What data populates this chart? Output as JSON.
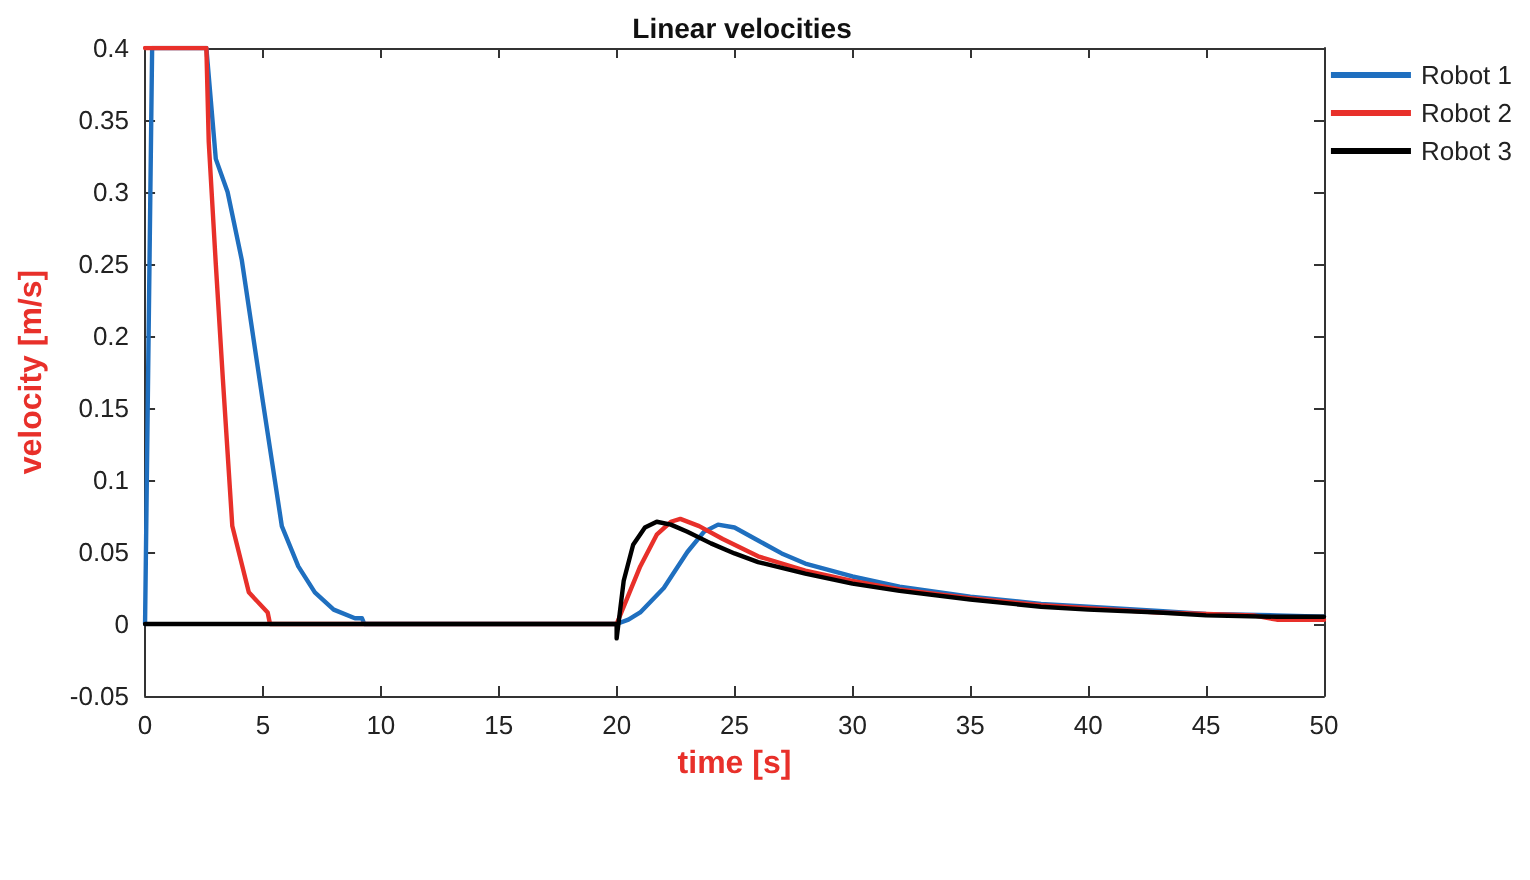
{
  "chart_data": {
    "type": "line",
    "title": "Linear velocities",
    "xlabel": "time [s]",
    "ylabel": "velocity [m/s]",
    "xlim": [
      0,
      50
    ],
    "xticks": [
      0,
      5,
      10,
      15,
      20,
      25,
      30,
      35,
      40,
      45,
      50
    ],
    "ylim": [
      -0.05,
      0.4
    ],
    "yticks": [
      -0.05,
      0,
      0.05,
      0.1,
      0.15,
      0.2,
      0.25,
      0.3,
      0.35,
      0.4
    ],
    "grid": false,
    "legend": "top right",
    "marker": "none",
    "line_style": "solid",
    "series": [
      {
        "name": "Robot 1",
        "color": "#1f6fbf",
        "x": [
          0,
          0.3,
          2.6,
          3,
          3.5,
          4.1,
          5,
          5.8,
          6.5,
          7.2,
          8,
          8.9,
          9.2,
          9.3,
          20,
          20.5,
          21,
          22,
          23,
          23.7,
          24.3,
          25,
          26,
          27,
          28,
          30,
          32,
          35,
          38,
          40,
          43,
          45,
          48,
          50
        ],
        "values": [
          0,
          0.4,
          0.4,
          0.323,
          0.3,
          0.253,
          0.154,
          0.068,
          0.04,
          0.022,
          0.01,
          0.004,
          0.004,
          0,
          0,
          0.003,
          0.008,
          0.025,
          0.05,
          0.064,
          0.069,
          0.067,
          0.058,
          0.049,
          0.042,
          0.033,
          0.026,
          0.019,
          0.014,
          0.012,
          0.009,
          0.007,
          0.006,
          0.005
        ]
      },
      {
        "name": "Robot 2",
        "color": "#e8302a",
        "x": [
          0,
          2.6,
          2.7,
          3,
          3.3,
          3.7,
          4.4,
          5.2,
          5.3,
          20,
          20.5,
          21,
          21.7,
          22.3,
          22.7,
          23.5,
          24.5,
          26,
          28,
          30,
          32,
          35,
          38,
          40,
          43,
          45,
          47,
          48,
          50
        ],
        "values": [
          0.4,
          0.4,
          0.335,
          0.25,
          0.17,
          0.068,
          0.022,
          0.008,
          0,
          0,
          0.02,
          0.04,
          0.062,
          0.071,
          0.073,
          0.068,
          0.059,
          0.047,
          0.037,
          0.03,
          0.024,
          0.018,
          0.013,
          0.011,
          0.008,
          0.007,
          0.006,
          0.003,
          0.003
        ]
      },
      {
        "name": "Robot 3",
        "color": "#000000",
        "x": [
          0,
          20,
          20,
          20.3,
          20.7,
          21.2,
          21.7,
          22.3,
          23,
          24,
          25,
          26,
          28,
          30,
          32,
          35,
          38,
          40,
          43,
          45,
          48,
          50
        ],
        "values": [
          0,
          0,
          -0.01,
          0.03,
          0.055,
          0.067,
          0.071,
          0.069,
          0.064,
          0.056,
          0.049,
          0.043,
          0.035,
          0.028,
          0.023,
          0.017,
          0.012,
          0.01,
          0.008,
          0.006,
          0.005,
          0.005
        ]
      }
    ]
  }
}
